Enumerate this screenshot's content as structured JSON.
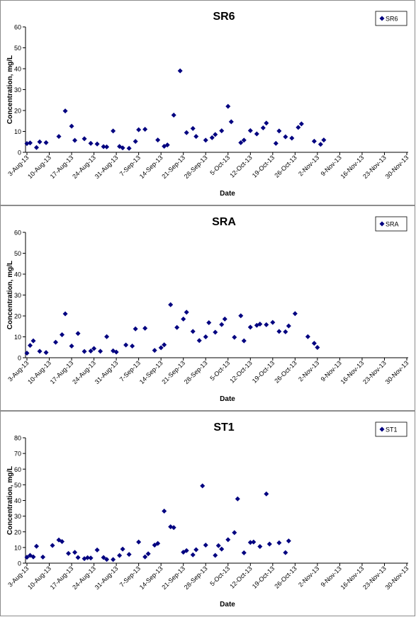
{
  "chart_data": [
    {
      "type": "scatter",
      "title": "SR6",
      "xlabel": "Date",
      "ylabel": "Concentration, mg/L",
      "ylim": [
        0,
        60
      ],
      "yticks": [
        "0",
        "10",
        "20",
        "30",
        "40",
        "50",
        "60"
      ],
      "xticks": [
        "3-Aug-13",
        "10-Aug-13",
        "17-Aug-13",
        "24-Aug-13",
        "31-Aug-13",
        "7-Sep-13",
        "14-Sep-13",
        "21-Sep-13",
        "28-Sep-13",
        "5-Oct-13",
        "12-Oct-13",
        "19-Oct-13",
        "26-Oct-13",
        "2-Nov-13",
        "9-Nov-13",
        "16-Nov-13",
        "23-Nov-13",
        "30-Nov-13"
      ],
      "legend": "top-right",
      "series": [
        {
          "name": "SR6",
          "points": [
            [
              "2013-08-03",
              4.2
            ],
            [
              "2013-08-04",
              4.5
            ],
            [
              "2013-08-06",
              2.3
            ],
            [
              "2013-08-07",
              5.0
            ],
            [
              "2013-08-09",
              4.6
            ],
            [
              "2013-08-13",
              7.6
            ],
            [
              "2013-08-15",
              19.8
            ],
            [
              "2013-08-17",
              12.5
            ],
            [
              "2013-08-18",
              5.7
            ],
            [
              "2013-08-21",
              6.5
            ],
            [
              "2013-08-23",
              4.3
            ],
            [
              "2013-08-25",
              4.0
            ],
            [
              "2013-08-27",
              2.7
            ],
            [
              "2013-08-28",
              2.6
            ],
            [
              "2013-08-30",
              10.2
            ],
            [
              "2013-09-01",
              2.8
            ],
            [
              "2013-09-02",
              2.1
            ],
            [
              "2013-09-04",
              1.9
            ],
            [
              "2013-09-06",
              5.2
            ],
            [
              "2013-09-07",
              10.8
            ],
            [
              "2013-09-09",
              11.0
            ],
            [
              "2013-09-13",
              5.9
            ],
            [
              "2013-09-15",
              2.9
            ],
            [
              "2013-09-16",
              3.5
            ],
            [
              "2013-09-18",
              17.8
            ],
            [
              "2013-09-20",
              39.0
            ],
            [
              "2013-09-22",
              9.4
            ],
            [
              "2013-09-24",
              11.4
            ],
            [
              "2013-09-25",
              7.6
            ],
            [
              "2013-09-28",
              5.8
            ],
            [
              "2013-09-30",
              7.0
            ],
            [
              "2013-10-01",
              8.5
            ],
            [
              "2013-10-03",
              10.3
            ],
            [
              "2013-10-05",
              22.0
            ],
            [
              "2013-10-06",
              14.6
            ],
            [
              "2013-10-09",
              4.6
            ],
            [
              "2013-10-10",
              5.8
            ],
            [
              "2013-10-12",
              10.4
            ],
            [
              "2013-10-14",
              8.8
            ],
            [
              "2013-10-16",
              11.7
            ],
            [
              "2013-10-17",
              14.0
            ],
            [
              "2013-10-20",
              4.3
            ],
            [
              "2013-10-21",
              10.2
            ],
            [
              "2013-10-23",
              7.4
            ],
            [
              "2013-10-25",
              6.8
            ],
            [
              "2013-10-27",
              11.9
            ],
            [
              "2013-10-28",
              13.6
            ],
            [
              "2013-11-01",
              5.3
            ],
            [
              "2013-11-03",
              3.8
            ],
            [
              "2013-11-04",
              5.9
            ]
          ]
        }
      ]
    },
    {
      "type": "scatter",
      "title": "SRA",
      "xlabel": "Date",
      "ylabel": "Concentration, mg/L",
      "ylim": [
        0,
        60
      ],
      "yticks": [
        "0",
        "10",
        "20",
        "30",
        "40",
        "50",
        "60"
      ],
      "xticks": [
        "3-Aug-13",
        "10-Aug-13",
        "17-Aug-13",
        "24-Aug-13",
        "31-Aug-13",
        "7-Sep-13",
        "14-Sep-13",
        "21-Sep-13",
        "28-Sep-13",
        "5-Oct-13",
        "12-Oct-13",
        "19-Oct-13",
        "26-Oct-13",
        "2-Nov-13",
        "9-Nov-13",
        "16-Nov-13",
        "23-Nov-13",
        "30-Nov-13"
      ],
      "legend": "top-right",
      "series": [
        {
          "name": "SRA",
          "points": [
            [
              "2013-08-03",
              2.2
            ],
            [
              "2013-08-04",
              5.9
            ],
            [
              "2013-08-05",
              8.1
            ],
            [
              "2013-08-07",
              3.1
            ],
            [
              "2013-08-09",
              2.5
            ],
            [
              "2013-08-12",
              7.4
            ],
            [
              "2013-08-14",
              11.0
            ],
            [
              "2013-08-15",
              21.0
            ],
            [
              "2013-08-17",
              5.6
            ],
            [
              "2013-08-19",
              11.6
            ],
            [
              "2013-08-21",
              3.0
            ],
            [
              "2013-08-23",
              3.2
            ],
            [
              "2013-08-24",
              4.4
            ],
            [
              "2013-08-26",
              3.1
            ],
            [
              "2013-08-28",
              10.1
            ],
            [
              "2013-08-30",
              3.3
            ],
            [
              "2013-08-31",
              2.7
            ],
            [
              "2013-09-03",
              6.1
            ],
            [
              "2013-09-05",
              5.6
            ],
            [
              "2013-09-06",
              13.8
            ],
            [
              "2013-09-09",
              14.1
            ],
            [
              "2013-09-12",
              3.5
            ],
            [
              "2013-09-14",
              4.8
            ],
            [
              "2013-09-15",
              6.2
            ],
            [
              "2013-09-17",
              25.4
            ],
            [
              "2013-09-19",
              14.5
            ],
            [
              "2013-09-21",
              18.5
            ],
            [
              "2013-09-22",
              21.8
            ],
            [
              "2013-09-24",
              12.6
            ],
            [
              "2013-09-26",
              8.2
            ],
            [
              "2013-09-28",
              10.0
            ],
            [
              "2013-09-29",
              16.8
            ],
            [
              "2013-10-01",
              12.2
            ],
            [
              "2013-10-03",
              15.9
            ],
            [
              "2013-10-04",
              18.5
            ],
            [
              "2013-10-07",
              9.8
            ],
            [
              "2013-10-09",
              20.1
            ],
            [
              "2013-10-10",
              8.1
            ],
            [
              "2013-10-12",
              14.6
            ],
            [
              "2013-10-14",
              15.5
            ],
            [
              "2013-10-15",
              16.1
            ],
            [
              "2013-10-17",
              15.8
            ],
            [
              "2013-10-19",
              16.9
            ],
            [
              "2013-10-21",
              12.6
            ],
            [
              "2013-10-23",
              12.4
            ],
            [
              "2013-10-24",
              15.2
            ],
            [
              "2013-10-26",
              21.1
            ],
            [
              "2013-10-30",
              10.1
            ],
            [
              "2013-11-01",
              6.9
            ],
            [
              "2013-11-02",
              4.9
            ]
          ]
        }
      ]
    },
    {
      "type": "scatter",
      "title": "ST1",
      "xlabel": "Date",
      "ylabel": "Concentration, mg/L",
      "ylim": [
        0,
        80
      ],
      "yticks": [
        "0",
        "10",
        "20",
        "30",
        "40",
        "50",
        "60",
        "70",
        "80"
      ],
      "xticks": [
        "3-Aug-13",
        "10-Aug-13",
        "17-Aug-13",
        "24-Aug-13",
        "31-Aug-13",
        "7-Sep-13",
        "14-Sep-13",
        "21-Sep-13",
        "28-Sep-13",
        "5-Oct-13",
        "12-Oct-13",
        "19-Oct-13",
        "26-Oct-13",
        "2-Nov-13",
        "9-Nov-13",
        "16-Nov-13",
        "23-Nov-13",
        "30-Nov-13"
      ],
      "legend": "top-right",
      "series": [
        {
          "name": "ST1",
          "points": [
            [
              "2013-08-03",
              3.8
            ],
            [
              "2013-08-04",
              5.0
            ],
            [
              "2013-08-05",
              4.0
            ],
            [
              "2013-08-06",
              10.8
            ],
            [
              "2013-08-08",
              3.9
            ],
            [
              "2013-08-11",
              11.3
            ],
            [
              "2013-08-13",
              14.8
            ],
            [
              "2013-08-14",
              13.8
            ],
            [
              "2013-08-16",
              6.2
            ],
            [
              "2013-08-18",
              6.9
            ],
            [
              "2013-08-19",
              3.6
            ],
            [
              "2013-08-21",
              2.9
            ],
            [
              "2013-08-22",
              3.5
            ],
            [
              "2013-08-23",
              3.3
            ],
            [
              "2013-08-25",
              8.4
            ],
            [
              "2013-08-27",
              3.6
            ],
            [
              "2013-08-28",
              2.4
            ],
            [
              "2013-08-30",
              2.3
            ],
            [
              "2013-09-01",
              4.9
            ],
            [
              "2013-09-02",
              9.0
            ],
            [
              "2013-09-04",
              5.6
            ],
            [
              "2013-09-07",
              13.5
            ],
            [
              "2013-09-09",
              4.0
            ],
            [
              "2013-09-10",
              6.0
            ],
            [
              "2013-09-12",
              11.5
            ],
            [
              "2013-09-13",
              12.6
            ],
            [
              "2013-09-15",
              33.2
            ],
            [
              "2013-09-17",
              23.2
            ],
            [
              "2013-09-18",
              22.7
            ],
            [
              "2013-09-21",
              7.0
            ],
            [
              "2013-09-22",
              8.0
            ],
            [
              "2013-09-24",
              5.3
            ],
            [
              "2013-09-25",
              8.6
            ],
            [
              "2013-09-27",
              49.3
            ],
            [
              "2013-09-28",
              11.5
            ],
            [
              "2013-10-01",
              5.0
            ],
            [
              "2013-10-02",
              11.2
            ],
            [
              "2013-10-03",
              9.0
            ],
            [
              "2013-10-05",
              15.0
            ],
            [
              "2013-10-07",
              19.5
            ],
            [
              "2013-10-08",
              41.0
            ],
            [
              "2013-10-10",
              6.6
            ],
            [
              "2013-10-12",
              13.2
            ],
            [
              "2013-10-13",
              13.5
            ],
            [
              "2013-10-15",
              10.6
            ],
            [
              "2013-10-17",
              44.2
            ],
            [
              "2013-10-18",
              12.2
            ],
            [
              "2013-10-21",
              13.0
            ],
            [
              "2013-10-23",
              6.7
            ],
            [
              "2013-10-24",
              14.2
            ]
          ]
        }
      ]
    }
  ]
}
